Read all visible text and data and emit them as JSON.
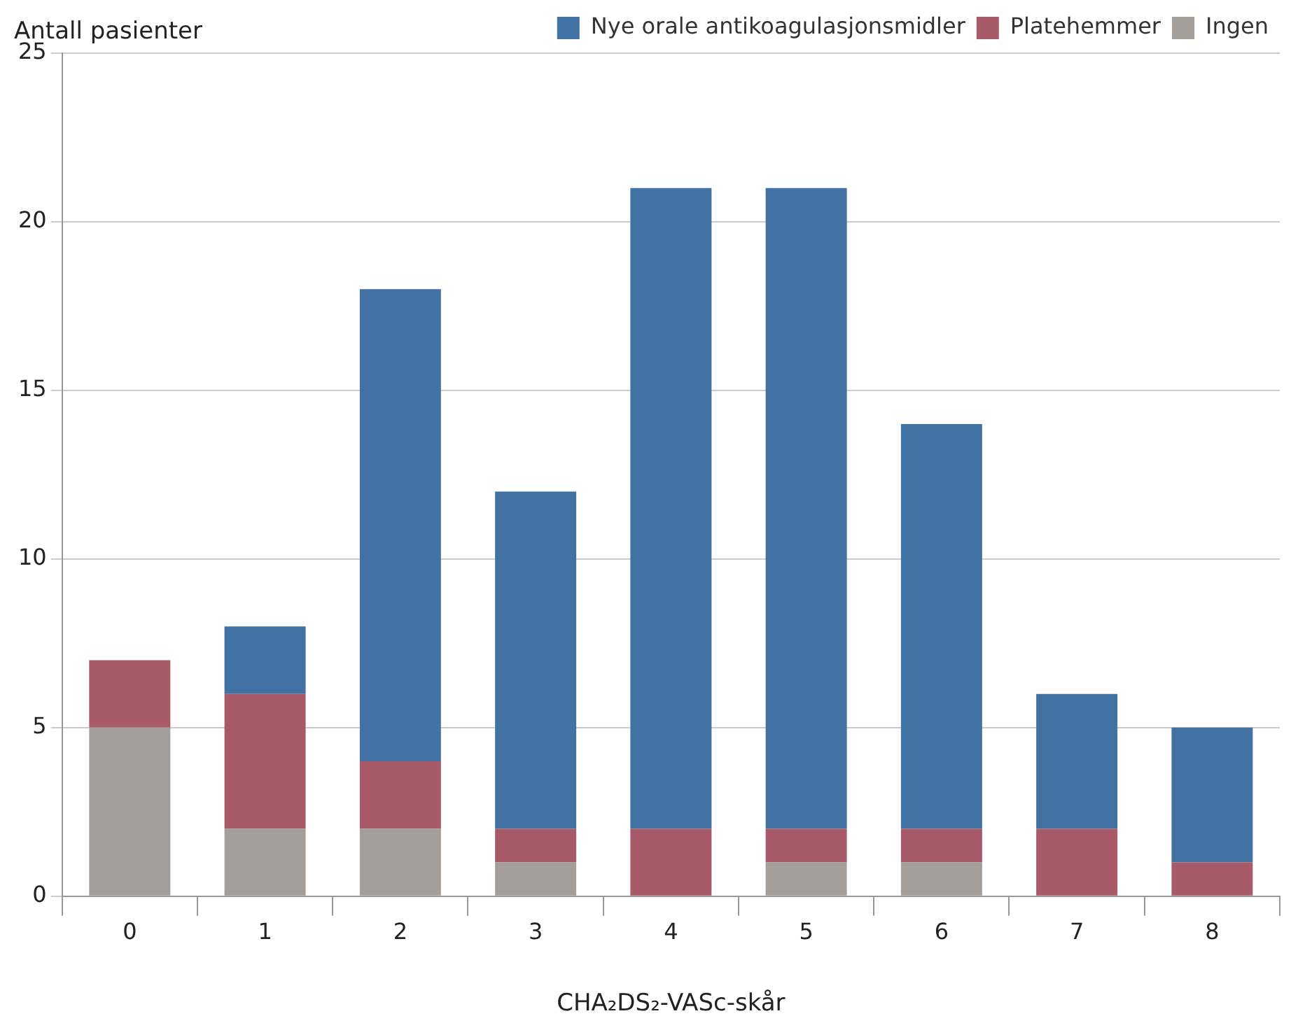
{
  "chart_data": {
    "type": "bar",
    "ylabel": "Antall pasienter",
    "xlabel": "CHA₂DS₂-VASc-skår",
    "categories": [
      "0",
      "1",
      "2",
      "3",
      "4",
      "5",
      "6",
      "7",
      "8"
    ],
    "stacked": true,
    "series": [
      {
        "name": "Ingen",
        "color": "#a39e99",
        "values": [
          5,
          2,
          2,
          1,
          0,
          1,
          1,
          0,
          0
        ]
      },
      {
        "name": "Platehemmer",
        "color": "#a85a69",
        "values": [
          2,
          4,
          2,
          1,
          2,
          1,
          1,
          2,
          1
        ]
      },
      {
        "name": "Nye orale antikoagulasjonsmidler",
        "color": "#4272a4",
        "values": [
          0,
          2,
          14,
          10,
          19,
          19,
          12,
          4,
          4
        ]
      }
    ],
    "ylim": [
      0,
      25
    ],
    "yticks": [
      0,
      5,
      10,
      15,
      20,
      25
    ],
    "grid": "y",
    "legend": "top right"
  }
}
